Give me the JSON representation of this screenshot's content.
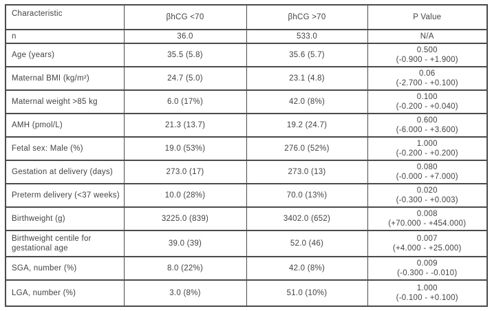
{
  "table": {
    "columns": [
      "Characteristic",
      "βhCG <70",
      "βhCG >70",
      "P Value"
    ],
    "rows": [
      {
        "label": "n",
        "bhcg_low": "36.0",
        "bhcg_high": "533.0",
        "p": "N/A",
        "ci": ""
      },
      {
        "label": "Age (years)",
        "bhcg_low": "35.5 (5.8)",
        "bhcg_high": "35.6 (5.7)",
        "p": "0.500",
        "ci": "(-0.900 - +1.900)"
      },
      {
        "label": "Maternal BMI (kg/m²)",
        "bhcg_low": "24.7 (5.0)",
        "bhcg_high": "23.1 (4.8)",
        "p": "0.06",
        "ci": "(-2.700 - +0.100)"
      },
      {
        "label": "Maternal weight >85 kg",
        "bhcg_low": "6.0 (17%)",
        "bhcg_high": "42.0 (8%)",
        "p": "0.100",
        "ci": "(-0.200 - +0.040)"
      },
      {
        "label": "AMH (pmol/L)",
        "bhcg_low": "21.3 (13.7)",
        "bhcg_high": "19.2 (24.7)",
        "p": "0.600",
        "ci": "(-6.000 - +3.600)"
      },
      {
        "label": "Fetal sex: Male (%)",
        "bhcg_low": "19.0 (53%)",
        "bhcg_high": "276.0 (52%)",
        "p": "1.000",
        "ci": "(-0.200 - +0.200)"
      },
      {
        "label": "Gestation at delivery (days)",
        "bhcg_low": "273.0 (17)",
        "bhcg_high": "273.0 (13)",
        "p": "0.080",
        "ci": "(-0.000 - +7.000)"
      },
      {
        "label": "Preterm delivery (<37 weeks)",
        "bhcg_low": "10.0 (28%)",
        "bhcg_high": "70.0 (13%)",
        "p": "0.020",
        "ci": "(-0.300 - +0.003)"
      },
      {
        "label": "Birthweight (g)",
        "bhcg_low": "3225.0 (839)",
        "bhcg_high": "3402.0 (652)",
        "p": "0.008",
        "ci": "(+70.000 - +454.000)"
      },
      {
        "label": "Birthweight centile for gestational age",
        "bhcg_low": "39.0 (39)",
        "bhcg_high": "52.0 (46)",
        "p": "0.007",
        "ci": "(+4.000 - +25.000)"
      },
      {
        "label": "SGA, number (%)",
        "bhcg_low": "8.0 (22%)",
        "bhcg_high": "42.0 (8%)",
        "p": "0.009",
        "ci": "(-0.300 - -0.010)"
      },
      {
        "label": "LGA, number (%)",
        "bhcg_low": "3.0 (8%)",
        "bhcg_high": "51.0 (10%)",
        "p": "1.000",
        "ci": "(-0.100 - +0.100)"
      }
    ]
  },
  "colors": {
    "border": "#4a4a4c",
    "text": "#414244",
    "background": "#ffffff"
  }
}
